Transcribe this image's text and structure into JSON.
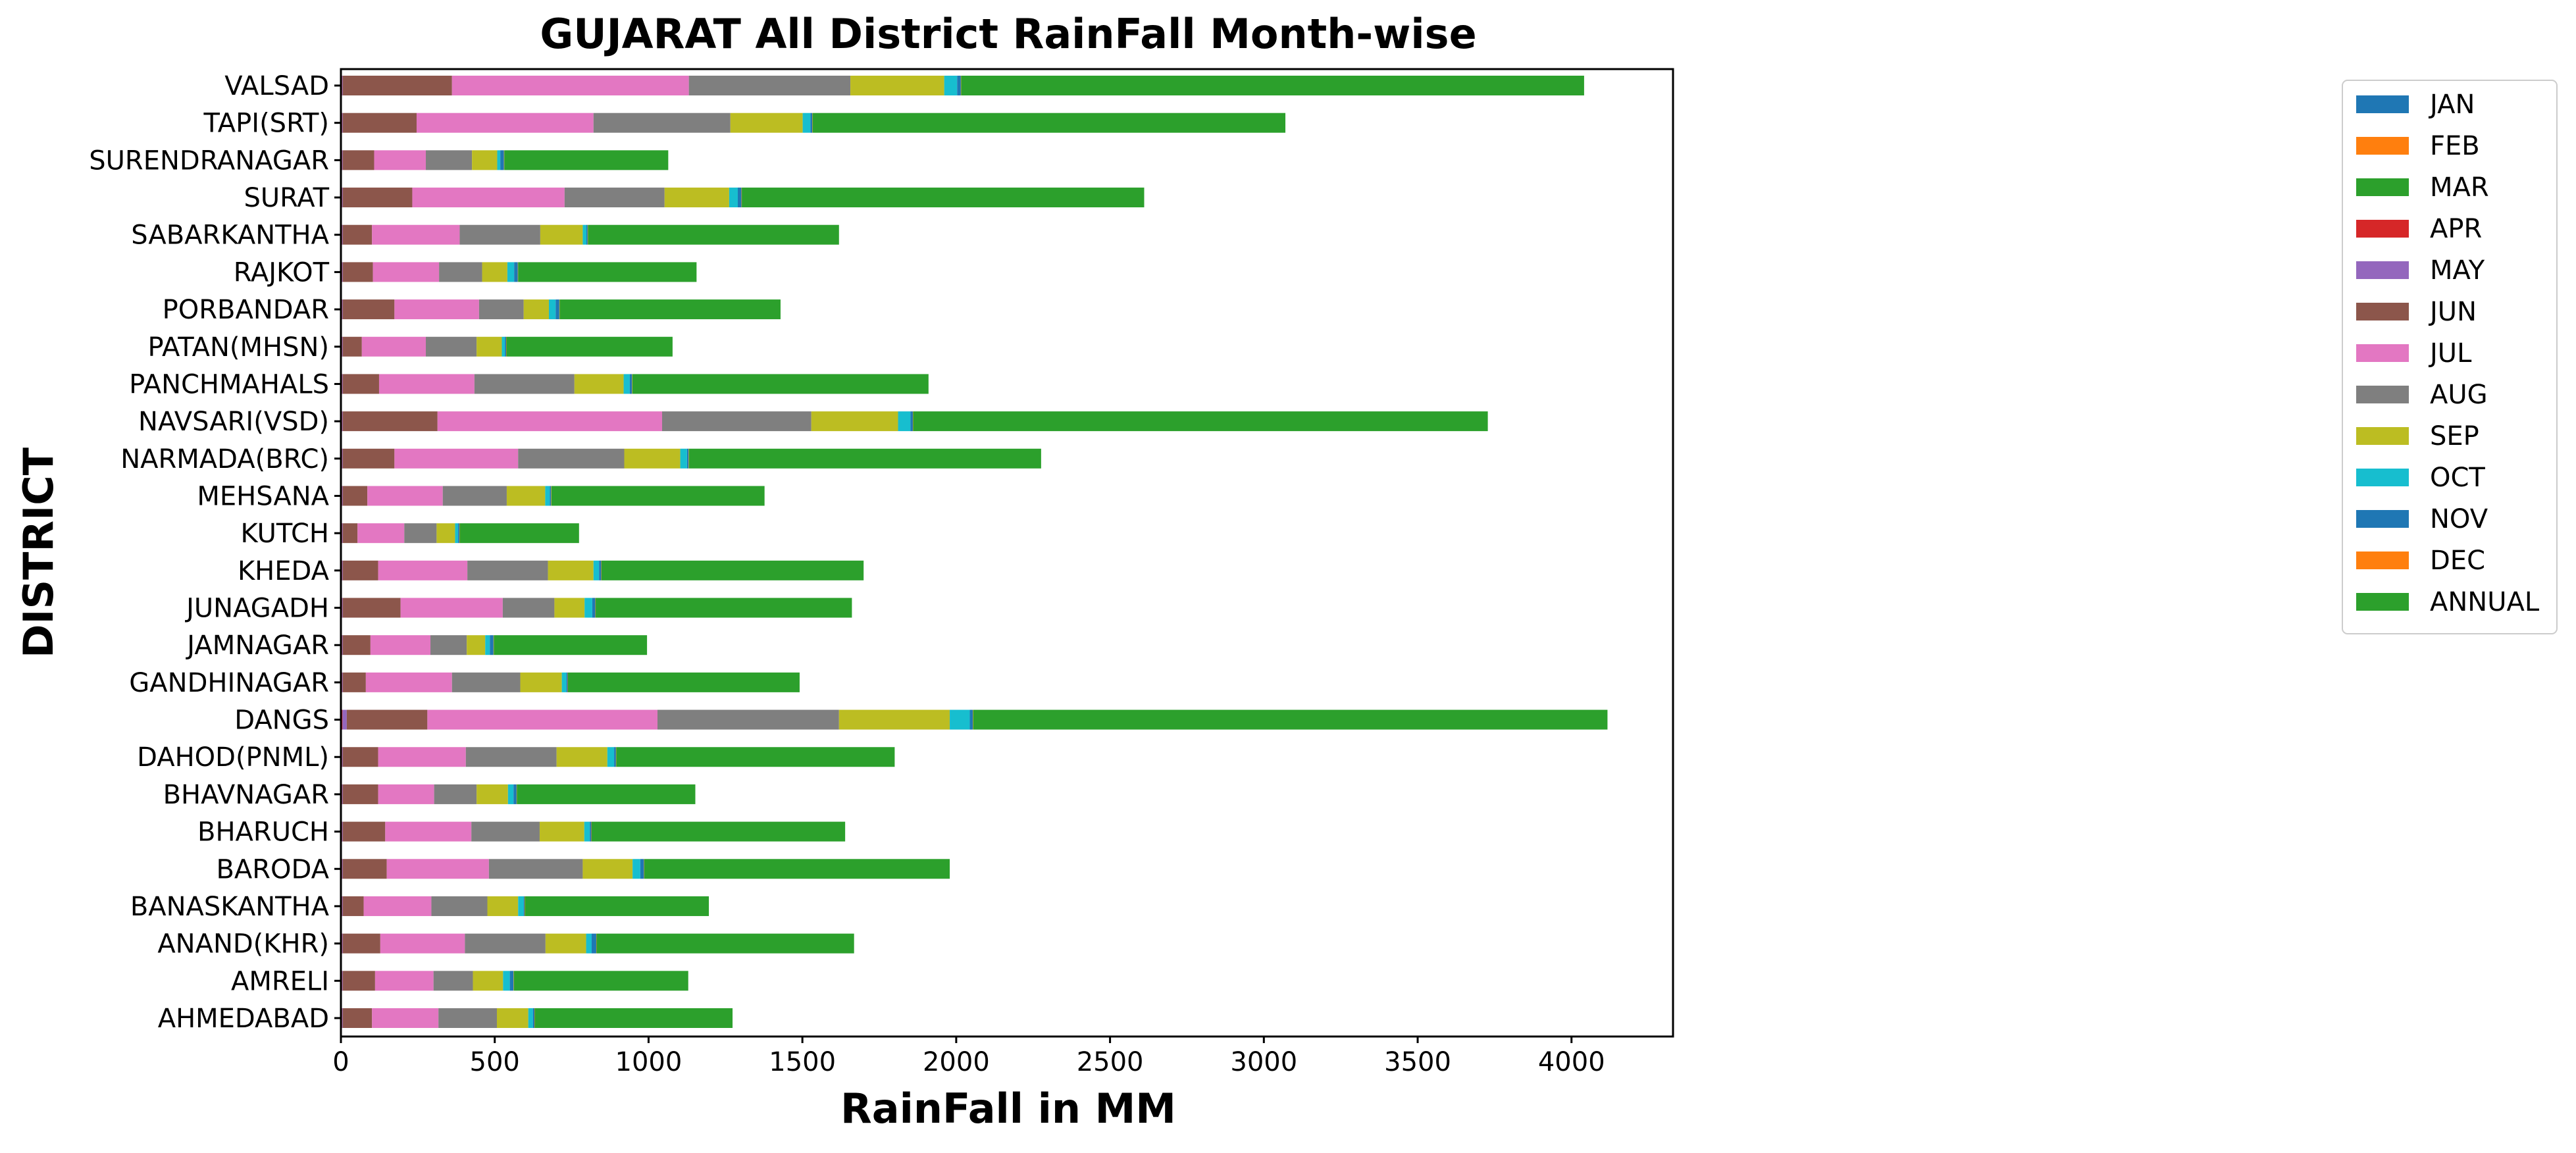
{
  "chart_data": {
    "type": "bar",
    "orientation": "horizontal",
    "stacked": true,
    "title": "GUJARAT All District RainFall Month-wise",
    "xlabel": "RainFall in MM",
    "ylabel": "DISTRICT",
    "xlim": [
      0,
      4330
    ],
    "xticks": [
      0,
      500,
      1000,
      1500,
      2000,
      2500,
      3000,
      3500,
      4000
    ],
    "grid": false,
    "legend_position": "right",
    "categories": [
      "AHMEDABAD",
      "AMRELI",
      "ANAND(KHR)",
      "BANASKANTHA",
      "BARODA",
      "BHARUCH",
      "BHAVNAGAR",
      "DAHOD(PNML)",
      "DANGS",
      "GANDHINAGAR",
      "JAMNAGAR",
      "JUNAGADH",
      "KHEDA",
      "KUTCH",
      "MEHSANA",
      "NARMADA(BRC)",
      "NAVSARI(VSD)",
      "PANCHMAHALS",
      "PATAN(MHSN)",
      "PORBANDAR",
      "RAJKOT",
      "SABARKANTHA",
      "SURAT",
      "SURENDRANAGAR",
      "TAPI(SRT)",
      "VALSAD"
    ],
    "series": [
      {
        "name": "JAN",
        "color": "#1f77b4",
        "values": [
          1,
          1,
          1,
          1,
          1,
          1,
          1,
          1,
          1,
          1,
          1,
          1,
          1,
          1,
          1,
          1,
          1,
          1,
          1,
          1,
          1,
          1,
          1,
          1,
          1,
          1
        ]
      },
      {
        "name": "FEB",
        "color": "#ff7f0e",
        "values": [
          1,
          1,
          1,
          1,
          1,
          1,
          1,
          1,
          1,
          1,
          1,
          1,
          1,
          1,
          1,
          1,
          1,
          1,
          1,
          1,
          1,
          1,
          1,
          1,
          1,
          1
        ]
      },
      {
        "name": "MAR",
        "color": "#2ca02c",
        "values": [
          1,
          1,
          1,
          1,
          1,
          1,
          1,
          1,
          1,
          1,
          1,
          1,
          1,
          1,
          1,
          1,
          1,
          1,
          1,
          1,
          1,
          1,
          1,
          1,
          1,
          1
        ]
      },
      {
        "name": "APR",
        "color": "#d62728",
        "values": [
          1,
          1,
          1,
          1,
          1,
          1,
          1,
          1,
          2,
          1,
          1,
          1,
          1,
          1,
          1,
          1,
          1,
          1,
          1,
          1,
          1,
          1,
          1,
          1,
          1,
          1
        ]
      },
      {
        "name": "MAY",
        "color": "#9467bd",
        "values": [
          2,
          2,
          2,
          2,
          2,
          2,
          2,
          2,
          14,
          2,
          2,
          2,
          2,
          2,
          2,
          2,
          2,
          2,
          2,
          2,
          2,
          2,
          2,
          2,
          2,
          2
        ]
      },
      {
        "name": "JUN",
        "color": "#8c564b",
        "values": [
          95,
          105,
          122,
          68,
          143,
          138,
          115,
          115,
          262,
          75,
          90,
          188,
          115,
          48,
          80,
          168,
          308,
          118,
          62,
          168,
          98,
          95,
          226,
          102,
          240,
          355
        ]
      },
      {
        "name": "JUL",
        "color": "#e377c2",
        "values": [
          216,
          190,
          275,
          220,
          332,
          280,
          182,
          285,
          748,
          280,
          195,
          332,
          290,
          152,
          245,
          402,
          730,
          310,
          208,
          275,
          215,
          285,
          495,
          168,
          575,
          770
        ]
      },
      {
        "name": "AUG",
        "color": "#7f7f7f",
        "values": [
          190,
          128,
          262,
          182,
          305,
          222,
          138,
          295,
          590,
          222,
          118,
          168,
          262,
          105,
          208,
          345,
          485,
          325,
          165,
          145,
          140,
          262,
          325,
          150,
          445,
          525
        ]
      },
      {
        "name": "SEP",
        "color": "#bcbd22",
        "values": [
          102,
          98,
          132,
          100,
          162,
          145,
          102,
          165,
          360,
          135,
          60,
          98,
          148,
          60,
          125,
          182,
          282,
          160,
          82,
          82,
          82,
          138,
          210,
          82,
          235,
          305
        ]
      },
      {
        "name": "OCT",
        "color": "#17becf",
        "values": [
          15,
          22,
          18,
          18,
          25,
          18,
          18,
          22,
          65,
          15,
          15,
          25,
          18,
          10,
          15,
          22,
          40,
          20,
          10,
          22,
          22,
          12,
          28,
          10,
          25,
          42
        ]
      },
      {
        "name": "NOV",
        "color": "#1f77b4",
        "values": [
          5,
          12,
          15,
          3,
          12,
          5,
          10,
          6,
          10,
          4,
          12,
          10,
          7,
          4,
          4,
          5,
          8,
          7,
          4,
          12,
          12,
          4,
          12,
          12,
          6,
          12
        ]
      },
      {
        "name": "DEC",
        "color": "#ff7f0e",
        "values": [
          1,
          1,
          1,
          1,
          1,
          1,
          1,
          1,
          1,
          1,
          1,
          1,
          1,
          1,
          1,
          1,
          1,
          1,
          1,
          1,
          1,
          1,
          1,
          1,
          1,
          1
        ]
      },
      {
        "name": "ANNUAL",
        "color": "#2ca02c",
        "values": [
          643,
          567,
          837,
          598,
          993,
          824,
          580,
          905,
          2062,
          753,
          498,
          833,
          852,
          388,
          693,
          1145,
          1868,
          963,
          540,
          718,
          580,
          816,
          1308,
          533,
          1537,
          2025
        ]
      }
    ]
  }
}
